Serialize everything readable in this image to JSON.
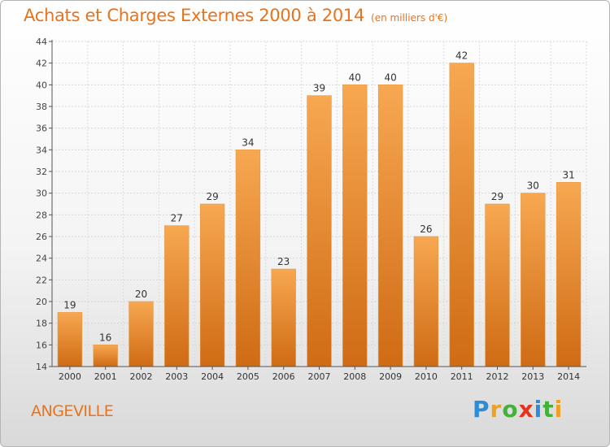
{
  "header": {
    "title": "Achats et Charges Externes 2000 à 2014",
    "unit": "(en milliers d'€)"
  },
  "footer": {
    "city": "ANGEVILLE",
    "logo_letters": [
      {
        "ch": "P",
        "color": "#2e8bd6"
      },
      {
        "ch": "r",
        "color": "#f0a020"
      },
      {
        "ch": "o",
        "color": "#45b03a"
      },
      {
        "ch": "x",
        "color": "#e8331c"
      },
      {
        "ch": "i",
        "color": "#2e8bd6"
      },
      {
        "ch": "t",
        "color": "#45b03a"
      },
      {
        "ch": "i",
        "color": "#f0a020"
      }
    ]
  },
  "chart_data": {
    "type": "bar",
    "categories": [
      "2000",
      "2001",
      "2002",
      "2003",
      "2004",
      "2005",
      "2006",
      "2007",
      "2008",
      "2009",
      "2010",
      "2011",
      "2012",
      "2013",
      "2014"
    ],
    "values": [
      19,
      16,
      20,
      27,
      29,
      34,
      23,
      39,
      40,
      40,
      26,
      42,
      29,
      30,
      31
    ],
    "ylim": [
      14,
      44
    ],
    "yticks": [
      14,
      16,
      18,
      20,
      22,
      24,
      26,
      28,
      30,
      32,
      34,
      36,
      38,
      40,
      42,
      44
    ],
    "grid": true,
    "bar_color_top": "#f7a851",
    "bar_color_bottom": "#cf6b14",
    "title": "Achats et Charges Externes 2000 à 2014",
    "xlabel": "",
    "ylabel": ""
  }
}
